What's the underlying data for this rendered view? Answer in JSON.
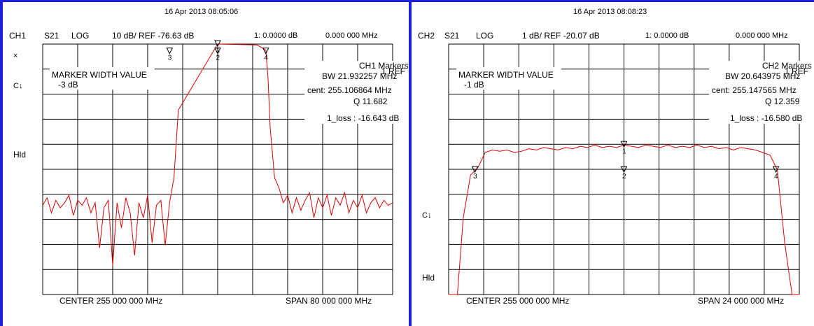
{
  "chart_data": [
    {
      "type": "line",
      "header": {
        "channel": "CH1",
        "param": "S21",
        "format": "LOG",
        "scale": "10 dB/ REF -76.63 dB",
        "datetime": "16 Apr 2013  08:05:06",
        "marker_readout": "1:  0.0000 dB",
        "marker_freq": "0.000 000 MHz"
      },
      "side_labels": {
        "top": "×",
        "c": "C↓",
        "hld": "Hld"
      },
      "marker_width": {
        "title": "MARKER WIDTH VALUE",
        "value": "-3 dB"
      },
      "markers_panel": {
        "title": "CH1 Markers",
        "ref": "1 REF",
        "bw": "BW  21.932257 MHz",
        "cent": "cent:  255.106864 MHz",
        "q": "Q  11.682",
        "loss": "1_loss :  -16.643 dB"
      },
      "footer": {
        "center": "CENTER 255 000 000 MHz",
        "span": "SPAN 80 000 000 MHz"
      },
      "x_range_mhz": [
        215,
        295
      ],
      "y_divisions": 10,
      "y_scale_db_per_div": 10,
      "y_top_db": -16.63,
      "trace_color": "#e00000",
      "trace": {
        "x": [
          215,
          216,
          217,
          218,
          219,
          220,
          221,
          222,
          223,
          224,
          225,
          226,
          227,
          228,
          229,
          230,
          231,
          232,
          233,
          234,
          235,
          236,
          237,
          238,
          239,
          240,
          241,
          242,
          243,
          244,
          245,
          246,
          255,
          264,
          266,
          266.5,
          267,
          268,
          268.5,
          269,
          270,
          271,
          272,
          273,
          274,
          275,
          276,
          277,
          278,
          279,
          280,
          281,
          282,
          283,
          284,
          285,
          286,
          287,
          288,
          289,
          290,
          291,
          292,
          293,
          294,
          295
        ],
        "y": [
          -81,
          -78,
          -84,
          -79,
          -82,
          -80,
          -77,
          -85,
          -79,
          -81,
          -78,
          -84,
          -80,
          -98,
          -82,
          -79,
          -105,
          -80,
          -90,
          -78,
          -84,
          -101,
          -80,
          -86,
          -77,
          -96,
          -81,
          -79,
          -97,
          -80,
          -70,
          -43,
          -16.63,
          -17,
          -19,
          -30,
          -50,
          -70,
          -72,
          -74,
          -80,
          -77,
          -84,
          -78,
          -83,
          -79,
          -76,
          -86,
          -78,
          -82,
          -77,
          -85,
          -78,
          -81,
          -76,
          -84,
          -79,
          -82,
          -77,
          -84,
          -80,
          -78,
          -82,
          -79,
          -81,
          -80
        ]
      },
      "marker_points": [
        {
          "label": "1",
          "x": 255,
          "y": -16.63
        },
        {
          "label": "2",
          "x": 255,
          "y": -19.6
        },
        {
          "label": "3",
          "x": 244,
          "y": -19.6
        },
        {
          "label": "4",
          "x": 266,
          "y": -19.6
        }
      ]
    },
    {
      "type": "line",
      "header": {
        "channel": "CH2",
        "param": "S21",
        "format": "LOG",
        "scale": "1 dB/ REF -20.07 dB",
        "datetime": "16 Apr 2013  08:08:23",
        "marker_readout": "1:  0.0000 dB",
        "marker_freq": "0.000 000 MHz"
      },
      "side_labels": {
        "c": "C↓",
        "hld": "Hld"
      },
      "marker_width": {
        "title": "MARKER WIDTH VALUE",
        "value": "-1 dB"
      },
      "markers_panel": {
        "title": "CH2 Markers",
        "ref": "1 REF",
        "bw": "BW  20.643975 MHz",
        "cent": "cent:  255.147565 MHz",
        "q": "Q  12.359",
        "loss": "1_loss :  -16.580 dB"
      },
      "footer": {
        "center": "CENTER 255 000 000 MHz",
        "span": "SPAN 24 000 000 MHz"
      },
      "x_range_mhz": [
        243,
        267
      ],
      "y_divisions": 10,
      "y_scale_db_per_div": 1,
      "y_top_db": -12.57,
      "trace_color": "#e00000",
      "trace": {
        "x": [
          243,
          243.6,
          244,
          244.5,
          245,
          245.5,
          246,
          246.5,
          247,
          247.5,
          248,
          248.5,
          249,
          249.5,
          250,
          250.5,
          251,
          251.5,
          252,
          252.5,
          253,
          253.5,
          254,
          254.5,
          255,
          255.5,
          256,
          256.5,
          257,
          257.5,
          258,
          258.5,
          259,
          259.5,
          260,
          260.5,
          261,
          261.5,
          262,
          262.5,
          263,
          263.5,
          264,
          264.5,
          265,
          265.5,
          266,
          266.5,
          267
        ],
        "y": [
          -22.57,
          -22.57,
          -19.5,
          -17.8,
          -17.5,
          -16.9,
          -16.8,
          -16.85,
          -16.8,
          -16.9,
          -16.85,
          -16.75,
          -16.8,
          -16.7,
          -16.75,
          -16.8,
          -16.7,
          -16.75,
          -16.65,
          -16.7,
          -16.6,
          -16.7,
          -16.65,
          -16.7,
          -16.6,
          -16.65,
          -16.7,
          -16.6,
          -16.65,
          -16.7,
          -16.6,
          -16.7,
          -16.65,
          -16.7,
          -16.6,
          -16.7,
          -16.65,
          -16.75,
          -16.7,
          -16.8,
          -16.7,
          -16.75,
          -16.8,
          -16.9,
          -17.0,
          -17.6,
          -20.5,
          -22.57,
          -22.57
        ]
      },
      "marker_points": [
        {
          "label": "1",
          "x": 255,
          "y": -16.6
        },
        {
          "label": "2",
          "x": 255,
          "y": -17.6
        },
        {
          "label": "3",
          "x": 244.8,
          "y": -17.6
        },
        {
          "label": "4",
          "x": 265.4,
          "y": -17.6
        }
      ]
    }
  ]
}
